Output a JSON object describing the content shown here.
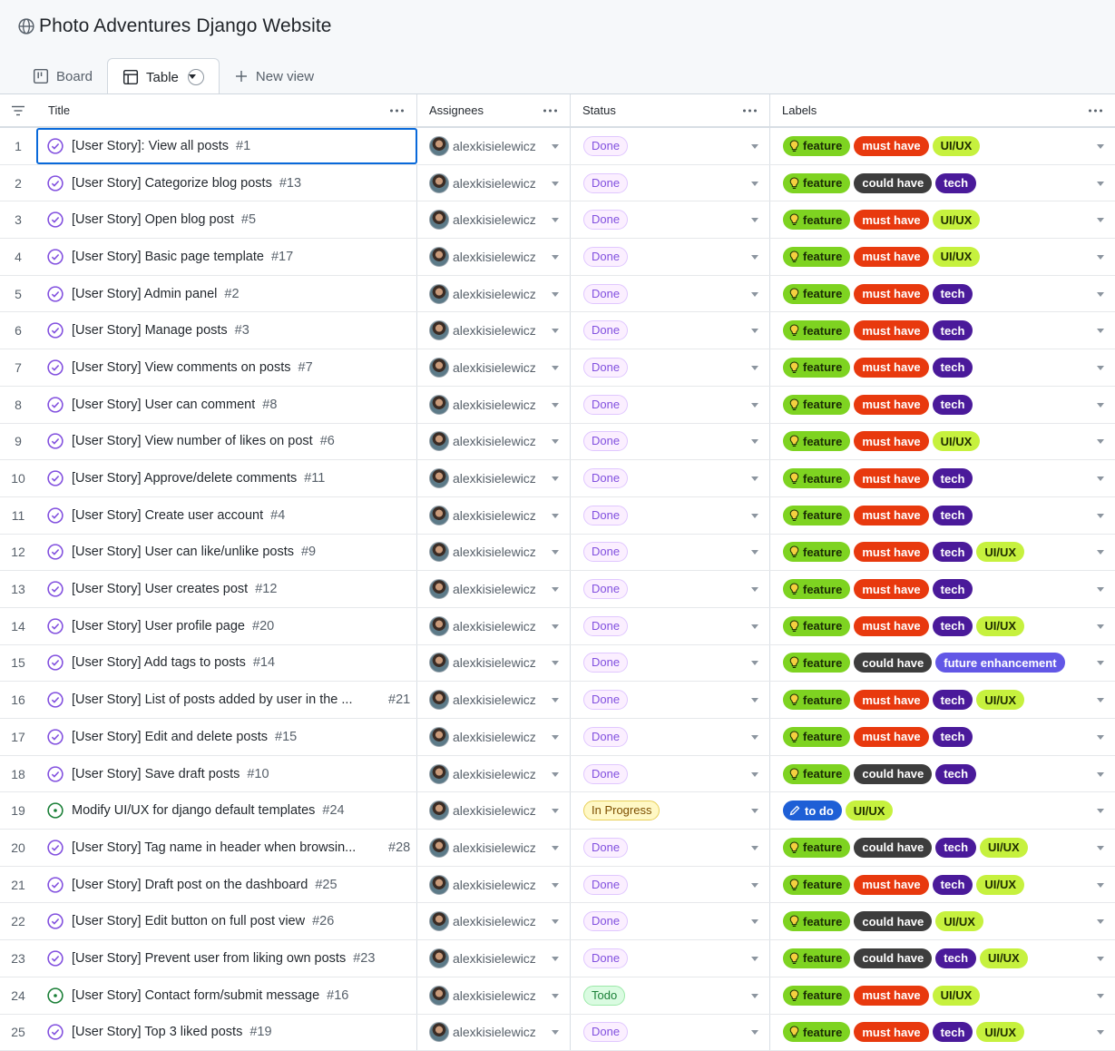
{
  "project": {
    "title": "Photo Adventures Django Website",
    "icon": "globe-icon"
  },
  "tabs": [
    {
      "label": "Board",
      "icon": "board-icon"
    },
    {
      "label": "Table",
      "icon": "table-icon",
      "active": true
    },
    {
      "label": "New view",
      "icon": "plus-icon"
    }
  ],
  "columns": {
    "title": "Title",
    "assignees": "Assignees",
    "status": "Status",
    "labels": "Labels"
  },
  "colors": {
    "feature": "#7ed321",
    "must_have": "#e8390e",
    "could_have": "#3d3d3d",
    "tech": "#4a1a9a",
    "ui_ux": "#c6f13e",
    "future_enhancement": "#6257e6",
    "to_do": "#1e5fd6",
    "selection": "#0969da"
  },
  "rows": [
    {
      "n": "1",
      "title": "[User Story]: View all posts",
      "num": "#1",
      "state": "closed",
      "assignee": "alexkisielewicz",
      "status": "Done",
      "labels": [
        "feature",
        "must have",
        "UI/UX"
      ]
    },
    {
      "n": "2",
      "title": "[User Story] Categorize blog posts",
      "num": "#13",
      "state": "closed",
      "assignee": "alexkisielewicz",
      "status": "Done",
      "labels": [
        "feature",
        "could have",
        "tech"
      ]
    },
    {
      "n": "3",
      "title": "[User Story] Open blog post",
      "num": "#5",
      "state": "closed",
      "assignee": "alexkisielewicz",
      "status": "Done",
      "labels": [
        "feature",
        "must have",
        "UI/UX"
      ]
    },
    {
      "n": "4",
      "title": "[User Story] Basic page template",
      "num": "#17",
      "state": "closed",
      "assignee": "alexkisielewicz",
      "status": "Done",
      "labels": [
        "feature",
        "must have",
        "UI/UX"
      ]
    },
    {
      "n": "5",
      "title": "[User Story] Admin panel",
      "num": "#2",
      "state": "closed",
      "assignee": "alexkisielewicz",
      "status": "Done",
      "labels": [
        "feature",
        "must have",
        "tech"
      ]
    },
    {
      "n": "6",
      "title": "[User Story] Manage posts",
      "num": "#3",
      "state": "closed",
      "assignee": "alexkisielewicz",
      "status": "Done",
      "labels": [
        "feature",
        "must have",
        "tech"
      ]
    },
    {
      "n": "7",
      "title": "[User Story] View comments on posts",
      "num": "#7",
      "state": "closed",
      "assignee": "alexkisielewicz",
      "status": "Done",
      "labels": [
        "feature",
        "must have",
        "tech"
      ]
    },
    {
      "n": "8",
      "title": "[User Story] User can comment",
      "num": "#8",
      "state": "closed",
      "assignee": "alexkisielewicz",
      "status": "Done",
      "labels": [
        "feature",
        "must have",
        "tech"
      ]
    },
    {
      "n": "9",
      "title": "[User Story] View number of likes on post",
      "num": "#6",
      "state": "closed",
      "assignee": "alexkisielewicz",
      "status": "Done",
      "labels": [
        "feature",
        "must have",
        "UI/UX"
      ]
    },
    {
      "n": "10",
      "title": "[User Story] Approve/delete comments",
      "num": "#11",
      "state": "closed",
      "assignee": "alexkisielewicz",
      "status": "Done",
      "labels": [
        "feature",
        "must have",
        "tech"
      ]
    },
    {
      "n": "11",
      "title": "[User Story] Create user account",
      "num": "#4",
      "state": "closed",
      "assignee": "alexkisielewicz",
      "status": "Done",
      "labels": [
        "feature",
        "must have",
        "tech"
      ]
    },
    {
      "n": "12",
      "title": "[User Story] User can like/unlike posts",
      "num": "#9",
      "state": "closed",
      "assignee": "alexkisielewicz",
      "status": "Done",
      "labels": [
        "feature",
        "must have",
        "tech",
        "UI/UX"
      ]
    },
    {
      "n": "13",
      "title": "[User Story] User creates post",
      "num": "#12",
      "state": "closed",
      "assignee": "alexkisielewicz",
      "status": "Done",
      "labels": [
        "feature",
        "must have",
        "tech"
      ]
    },
    {
      "n": "14",
      "title": "[User Story] User profile page",
      "num": "#20",
      "state": "closed",
      "assignee": "alexkisielewicz",
      "status": "Done",
      "labels": [
        "feature",
        "must have",
        "tech",
        "UI/UX"
      ]
    },
    {
      "n": "15",
      "title": "[User Story] Add tags to posts",
      "num": "#14",
      "state": "closed",
      "assignee": "alexkisielewicz",
      "status": "Done",
      "labels": [
        "feature",
        "could have",
        "future enhancement"
      ]
    },
    {
      "n": "16",
      "title": "[User Story] List of posts added by user in the ...",
      "num": "#21",
      "state": "closed",
      "truncated": true,
      "assignee": "alexkisielewicz",
      "status": "Done",
      "labels": [
        "feature",
        "must have",
        "tech",
        "UI/UX"
      ]
    },
    {
      "n": "17",
      "title": "[User Story] Edit and delete posts",
      "num": "#15",
      "state": "closed",
      "assignee": "alexkisielewicz",
      "status": "Done",
      "labels": [
        "feature",
        "must have",
        "tech"
      ]
    },
    {
      "n": "18",
      "title": "[User Story] Save draft posts",
      "num": "#10",
      "state": "closed",
      "assignee": "alexkisielewicz",
      "status": "Done",
      "labels": [
        "feature",
        "could have",
        "tech"
      ]
    },
    {
      "n": "19",
      "title": "Modify UI/UX for django default templates",
      "num": "#24",
      "state": "open",
      "assignee": "alexkisielewicz",
      "status": "In Progress",
      "labels": [
        "to do",
        "UI/UX"
      ]
    },
    {
      "n": "20",
      "title": "[User Story] Tag name in header when browsin...",
      "num": "#28",
      "state": "closed",
      "truncated": true,
      "assignee": "alexkisielewicz",
      "status": "Done",
      "labels": [
        "feature",
        "could have",
        "tech",
        "UI/UX"
      ]
    },
    {
      "n": "21",
      "title": "[User Story] Draft post on the dashboard",
      "num": "#25",
      "state": "closed",
      "assignee": "alexkisielewicz",
      "status": "Done",
      "labels": [
        "feature",
        "must have",
        "tech",
        "UI/UX"
      ]
    },
    {
      "n": "22",
      "title": "[User Story] Edit button on full post view",
      "num": "#26",
      "state": "closed",
      "assignee": "alexkisielewicz",
      "status": "Done",
      "labels": [
        "feature",
        "could have",
        "UI/UX"
      ]
    },
    {
      "n": "23",
      "title": "[User Story] Prevent user from liking own posts",
      "num": "#23",
      "state": "closed",
      "assignee": "alexkisielewicz",
      "status": "Done",
      "labels": [
        "feature",
        "could have",
        "tech",
        "UI/UX"
      ]
    },
    {
      "n": "24",
      "title": "[User Story] Contact form/submit message",
      "num": "#16",
      "state": "open",
      "assignee": "alexkisielewicz",
      "status": "Todo",
      "labels": [
        "feature",
        "must have",
        "UI/UX"
      ]
    },
    {
      "n": "25",
      "title": "[User Story] Top 3 liked posts",
      "num": "#19",
      "state": "closed",
      "assignee": "alexkisielewicz",
      "status": "Done",
      "labels": [
        "feature",
        "must have",
        "tech",
        "UI/UX"
      ]
    }
  ]
}
